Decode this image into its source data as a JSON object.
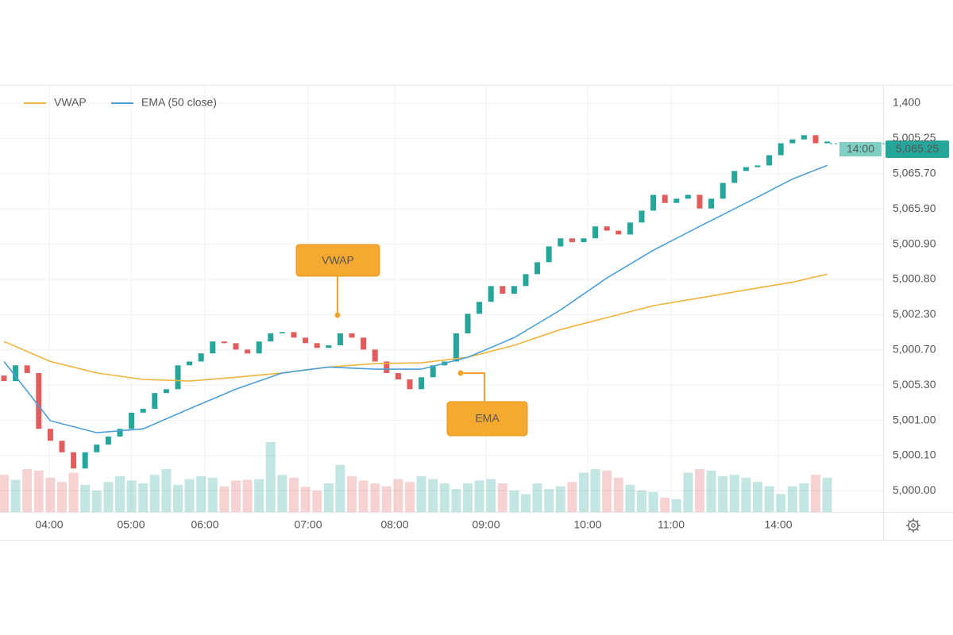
{
  "chart_data": {
    "type": "candlestick",
    "ylim": [
      0,
      100
    ],
    "up_color": "#26a69a",
    "down_color": "#e25c5c",
    "candles": {
      "open": [
        32.0,
        30.7,
        34.4,
        32.6,
        19.5,
        16.7,
        14.0,
        10.2,
        14.0,
        15.8,
        17.7,
        19.5,
        23.3,
        24.2,
        27.9,
        28.8,
        34.4,
        35.3,
        37.2,
        40.0,
        39.6,
        38.1,
        37.2,
        40.0,
        41.9,
        42.2,
        40.9,
        39.6,
        38.5,
        39.1,
        41.9,
        40.9,
        38.1,
        35.3,
        32.6,
        31.1,
        28.8,
        31.6,
        34.4,
        35.3,
        41.9,
        46.5,
        49.3,
        53.0,
        51.2,
        53.0,
        55.8,
        58.6,
        62.3,
        64.2,
        63.3,
        64.2,
        67.0,
        66.0,
        65.1,
        67.9,
        70.7,
        74.4,
        72.5,
        73.5,
        74.4,
        71.2,
        73.5,
        77.2,
        80.0,
        80.9,
        81.3,
        83.7,
        86.5,
        87.4,
        88.4,
        86.5
      ],
      "close": [
        30.7,
        34.4,
        32.6,
        19.5,
        16.7,
        14.0,
        10.2,
        14.0,
        15.8,
        17.7,
        19.5,
        23.3,
        24.2,
        27.9,
        28.8,
        34.4,
        35.3,
        37.2,
        40.0,
        39.6,
        38.1,
        37.2,
        40.0,
        41.9,
        42.2,
        40.9,
        39.6,
        38.5,
        39.1,
        41.9,
        40.9,
        38.1,
        35.3,
        32.6,
        31.1,
        28.8,
        31.6,
        34.4,
        35.3,
        41.9,
        46.5,
        49.3,
        53.0,
        51.2,
        53.0,
        55.8,
        58.6,
        62.3,
        64.2,
        63.3,
        64.2,
        67.0,
        66.0,
        65.1,
        67.9,
        70.7,
        74.4,
        72.5,
        73.5,
        74.4,
        71.2,
        73.5,
        77.2,
        80.0,
        80.9,
        81.3,
        83.7,
        86.5,
        87.4,
        88.4,
        86.5,
        86.9
      ]
    },
    "volume": {
      "ylim": [
        0,
        100
      ],
      "values": [
        52,
        45,
        60,
        58,
        48,
        42,
        55,
        38,
        30,
        42,
        50,
        44,
        40,
        52,
        60,
        38,
        46,
        50,
        48,
        36,
        44,
        45,
        46,
        98,
        52,
        48,
        35,
        30,
        40,
        66,
        50,
        44,
        40,
        36,
        46,
        42,
        50,
        46,
        40,
        32,
        40,
        44,
        46,
        40,
        30,
        25,
        40,
        32,
        36,
        42,
        55,
        60,
        58,
        48,
        38,
        30,
        28,
        20,
        18,
        55,
        60,
        58,
        50,
        52,
        48,
        42,
        36,
        25,
        36,
        40,
        52,
        48
      ]
    },
    "line_x": [
      0,
      4,
      8,
      12,
      16,
      20,
      24,
      28,
      32,
      36,
      40,
      44,
      48,
      52,
      56,
      60,
      64,
      68,
      71
    ],
    "series": [
      {
        "name": "VWAP",
        "color": "#f0b43c",
        "values": [
          40.0,
          35.3,
          32.6,
          31.1,
          30.7,
          31.6,
          32.6,
          34.0,
          34.8,
          35.0,
          36.3,
          39.1,
          42.8,
          45.6,
          48.4,
          50.2,
          52.1,
          53.9,
          55.8
        ]
      },
      {
        "name": "EMA (50 close)",
        "color": "#4a9fd8",
        "values": [
          35.3,
          21.4,
          18.6,
          19.5,
          24.2,
          28.8,
          32.6,
          34.0,
          33.5,
          33.5,
          36.3,
          40.9,
          47.4,
          54.9,
          61.4,
          67.0,
          72.5,
          78.1,
          81.3
        ]
      }
    ],
    "price_labels": [
      "1,400",
      "5,005.25",
      "5,065.70",
      "5,065.90",
      "5,000.90",
      "5,000.80",
      "5,002.30",
      "5,000.70",
      "5,005.30",
      "5,001.00",
      "5,000.10",
      "5,000.00"
    ],
    "time_labels": [
      "04:00",
      "05:00",
      "06:00",
      "07:00",
      "08:00",
      "09:00",
      "10:00",
      "11:00",
      "14:00"
    ],
    "annotations": [
      {
        "text": "VWAP"
      },
      {
        "text": "EMA"
      }
    ],
    "last_price": {
      "time": "14:00",
      "label": "5,065.25"
    }
  }
}
